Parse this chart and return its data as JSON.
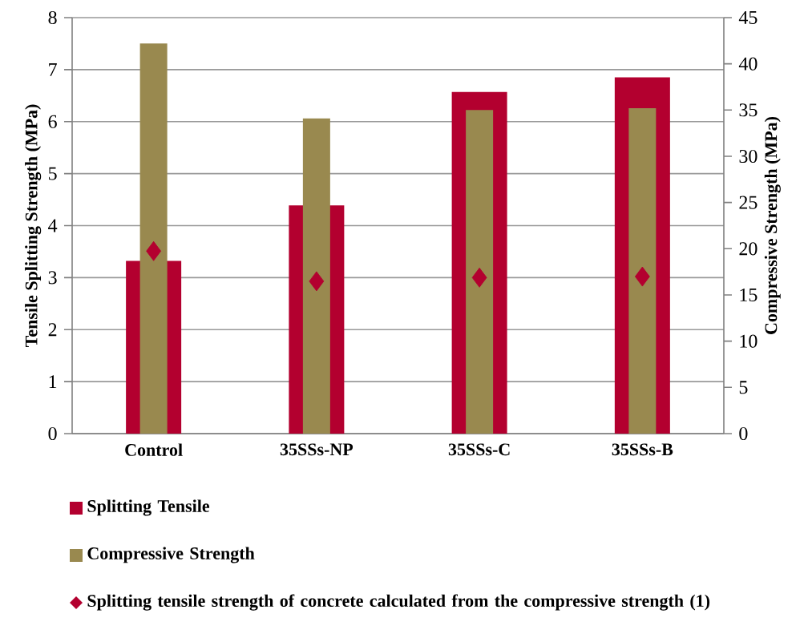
{
  "chart_data": {
    "type": "bar",
    "categories": [
      "Control",
      "35SSs-NP",
      "35SSs-C",
      "35SSs-B"
    ],
    "ylabel": "Tensile Splitting Strength (MPa)",
    "y2label": "Compressive Strength (MPa)",
    "ylim": [
      0,
      8
    ],
    "yticks": [
      0,
      1,
      2,
      3,
      4,
      5,
      6,
      7,
      8
    ],
    "y2lim": [
      0,
      45
    ],
    "y2ticks": [
      0,
      5,
      10,
      15,
      20,
      25,
      30,
      35,
      40,
      45
    ],
    "grid": "y",
    "legend": "bottom",
    "series": [
      {
        "name": "Splitting Tensile",
        "color": "#b3002f",
        "values": [
          3.32,
          4.39,
          6.57,
          6.85
        ]
      },
      {
        "name": "Compressive Strength",
        "color": "#99894f",
        "axis": "y2",
        "values": [
          42.2,
          34.1,
          35.0,
          35.2
        ]
      },
      {
        "name": "Splitting tensile strength of concrete calculated from the compressive strength (1)",
        "type": "scatter",
        "marker": "diamond",
        "color": "#b3002f",
        "values": [
          3.51,
          2.93,
          3.0,
          3.02
        ]
      }
    ]
  }
}
